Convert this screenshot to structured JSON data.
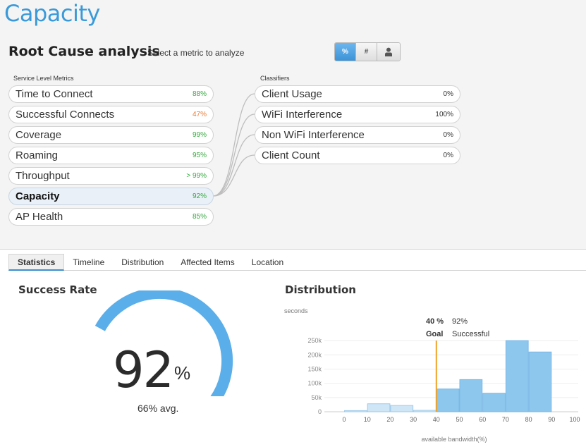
{
  "header": {
    "title": "Capacity"
  },
  "analysis": {
    "title": "Root Cause analysis",
    "subtitle": "Select a metric to analyze",
    "modes": [
      {
        "label": "%",
        "active": true
      },
      {
        "label": "#",
        "active": false
      },
      {
        "icon": "user-icon",
        "active": false
      }
    ]
  },
  "metrics": {
    "heading": "Service Level Metrics",
    "items": [
      {
        "label": "Time to Connect",
        "value": "88%",
        "color": "green"
      },
      {
        "label": "Successful Connects",
        "value": "47%",
        "color": "orange"
      },
      {
        "label": "Coverage",
        "value": "99%",
        "color": "green"
      },
      {
        "label": "Roaming",
        "value": "95%",
        "color": "green"
      },
      {
        "label": "Throughput",
        "value": "> 99%",
        "color": "green"
      },
      {
        "label": "Capacity",
        "value": "92%",
        "color": "green",
        "selected": true
      },
      {
        "label": "AP Health",
        "value": "85%",
        "color": "green"
      }
    ]
  },
  "classifiers": {
    "heading": "Classifiers",
    "items": [
      {
        "label": "Client Usage",
        "value": "0%"
      },
      {
        "label": "WiFi Interference",
        "value": "100%"
      },
      {
        "label": "Non WiFi Interference",
        "value": "0%"
      },
      {
        "label": "Client Count",
        "value": "0%"
      }
    ]
  },
  "tabs": [
    "Statistics",
    "Timeline",
    "Distribution",
    "Affected Items",
    "Location"
  ],
  "active_tab": "Statistics",
  "success_rate": {
    "title": "Success Rate",
    "value": "92",
    "unit": "%",
    "avg": "66% avg.",
    "fraction": 0.92,
    "avg_fraction": 0.66
  },
  "colors": {
    "accent": "#3a9ad9",
    "bar": "#8ec7ee",
    "bar_light": "#cfe6f7",
    "goal": "#f0a327"
  },
  "distribution": {
    "title": "Distribution"
  },
  "chart_data": {
    "type": "bar",
    "ylabel": "seconds",
    "xlabel": "available bandwidth(%)",
    "x_ticks": [
      "0",
      "10",
      "20",
      "30",
      "40",
      "50",
      "60",
      "70",
      "80",
      "90",
      "100"
    ],
    "y_ticks": [
      "0",
      "50k",
      "100k",
      "150k",
      "200k",
      "250k"
    ],
    "ylim": [
      0,
      270000
    ],
    "xlim": [
      0,
      100
    ],
    "bins": [
      {
        "x0": 0,
        "x1": 10,
        "value": 4000,
        "side": "below"
      },
      {
        "x0": 10,
        "x1": 20,
        "value": 28000,
        "side": "below"
      },
      {
        "x0": 20,
        "x1": 30,
        "value": 22000,
        "side": "below"
      },
      {
        "x0": 30,
        "x1": 40,
        "value": 5000,
        "side": "below"
      },
      {
        "x0": 40,
        "x1": 50,
        "value": 80000,
        "side": "above"
      },
      {
        "x0": 50,
        "x1": 60,
        "value": 113000,
        "side": "above"
      },
      {
        "x0": 60,
        "x1": 70,
        "value": 65000,
        "side": "above"
      },
      {
        "x0": 70,
        "x1": 80,
        "value": 250000,
        "side": "above"
      },
      {
        "x0": 80,
        "x1": 90,
        "value": 210000,
        "side": "above"
      }
    ],
    "goal": {
      "x": 40,
      "label": "Goal",
      "value": "40 %",
      "successful_label": "Successful",
      "successful_value": "92%"
    }
  }
}
